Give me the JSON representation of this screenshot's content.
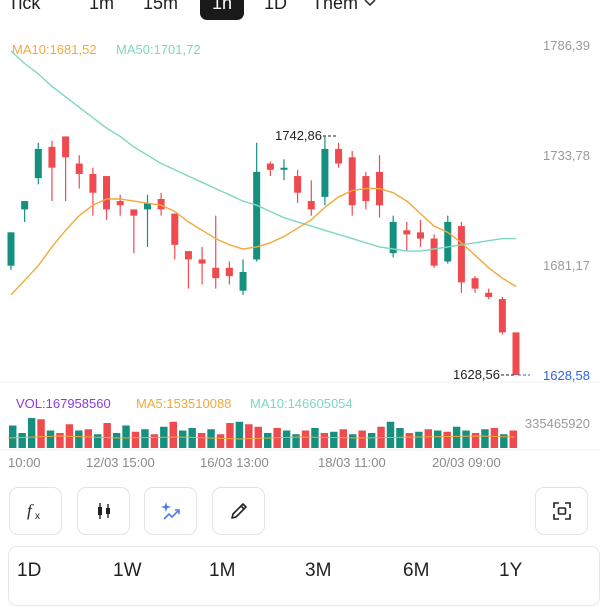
{
  "timeframes": {
    "items": [
      "Tick",
      "1m",
      "15m",
      "1h",
      "1D"
    ],
    "active": "1h",
    "more_label": "Thêm"
  },
  "indicators": {
    "ma10_label": "MA10:1681,52",
    "ma50_label": "MA50:1701,72",
    "vol_label": "VOL:167958560",
    "vol_ma5_label": "MA5:153510088",
    "vol_ma10_label": "MA10:146605054"
  },
  "colors": {
    "up": "#15907f",
    "down": "#ef4a4f",
    "ma10": "#f2a93b",
    "ma50": "#7fd6c3",
    "vol_label": "#8a3ae0",
    "price_tag": "#2f62e8"
  },
  "price_axis": {
    "ticks": [
      "1786,39",
      "1733,78",
      "1681,17"
    ],
    "current": "1628,58"
  },
  "annotations": {
    "high_label": "1742,86",
    "low_label": "1628,56"
  },
  "volume_axis_label": "335465920",
  "time_axis": {
    "ticks": [
      "10:00",
      "12/03 15:00",
      "16/03 13:00",
      "18/03 11:00",
      "20/03 09:00"
    ]
  },
  "toolbar": {
    "items": [
      "fx-icon",
      "candlestick-icon",
      "ai-sparkle-chart-icon",
      "pencil-icon",
      "fullscreen-icon"
    ]
  },
  "range_tabs": [
    "1D",
    "1W",
    "1M",
    "3M",
    "6M",
    "1Y"
  ],
  "chart_data": {
    "type": "candlestick",
    "y_range": [
      1628.56,
      1786.39
    ],
    "candles": [
      {
        "o": 1681,
        "h": 1697,
        "l": 1679,
        "c": 1697
      },
      {
        "o": 1708,
        "h": 1712,
        "l": 1702,
        "c": 1712
      },
      {
        "o": 1723,
        "h": 1740,
        "l": 1720,
        "c": 1737
      },
      {
        "o": 1738,
        "h": 1741,
        "l": 1712,
        "c": 1728
      },
      {
        "o": 1743,
        "h": 1743,
        "l": 1712,
        "c": 1733
      },
      {
        "o": 1730,
        "h": 1734,
        "l": 1718,
        "c": 1725
      },
      {
        "o": 1725,
        "h": 1728,
        "l": 1705,
        "c": 1716
      },
      {
        "o": 1724,
        "h": 1724,
        "l": 1703,
        "c": 1708
      },
      {
        "o": 1712,
        "h": 1715,
        "l": 1705,
        "c": 1710
      },
      {
        "o": 1708,
        "h": 1708,
        "l": 1687,
        "c": 1705
      },
      {
        "o": 1708,
        "h": 1715,
        "l": 1690,
        "c": 1711
      },
      {
        "o": 1713,
        "h": 1716,
        "l": 1705,
        "c": 1708
      },
      {
        "o": 1706,
        "h": 1706,
        "l": 1684,
        "c": 1691
      },
      {
        "o": 1688,
        "h": 1688,
        "l": 1670,
        "c": 1684
      },
      {
        "o": 1684,
        "h": 1690,
        "l": 1672,
        "c": 1682
      },
      {
        "o": 1680,
        "h": 1705,
        "l": 1670,
        "c": 1675
      },
      {
        "o": 1680,
        "h": 1683,
        "l": 1672,
        "c": 1676
      },
      {
        "o": 1669,
        "h": 1684,
        "l": 1667,
        "c": 1678
      },
      {
        "o": 1684,
        "h": 1740,
        "l": 1683,
        "c": 1726
      },
      {
        "o": 1730,
        "h": 1731,
        "l": 1724,
        "c": 1727
      },
      {
        "o": 1727,
        "h": 1732,
        "l": 1722,
        "c": 1728
      },
      {
        "o": 1724,
        "h": 1727,
        "l": 1711,
        "c": 1716
      },
      {
        "o": 1712,
        "h": 1722,
        "l": 1705,
        "c": 1708
      },
      {
        "o": 1714,
        "h": 1742.86,
        "l": 1710,
        "c": 1737
      },
      {
        "o": 1737,
        "h": 1740,
        "l": 1728,
        "c": 1730
      },
      {
        "o": 1733,
        "h": 1736,
        "l": 1705,
        "c": 1710
      },
      {
        "o": 1724,
        "h": 1726,
        "l": 1708,
        "c": 1712
      },
      {
        "o": 1726,
        "h": 1734,
        "l": 1704,
        "c": 1710
      },
      {
        "o": 1687,
        "h": 1705,
        "l": 1685,
        "c": 1702
      },
      {
        "o": 1698,
        "h": 1702,
        "l": 1688,
        "c": 1696
      },
      {
        "o": 1697,
        "h": 1703,
        "l": 1690,
        "c": 1694
      },
      {
        "o": 1694,
        "h": 1696,
        "l": 1680,
        "c": 1681
      },
      {
        "o": 1683,
        "h": 1705,
        "l": 1682,
        "c": 1702
      },
      {
        "o": 1700,
        "h": 1702,
        "l": 1668,
        "c": 1673
      },
      {
        "o": 1675,
        "h": 1676,
        "l": 1668,
        "c": 1670
      },
      {
        "o": 1668,
        "h": 1670,
        "l": 1665,
        "c": 1666
      },
      {
        "o": 1665,
        "h": 1666,
        "l": 1648,
        "c": 1649
      },
      {
        "o": 1649,
        "h": 1649,
        "l": 1628.56,
        "c": 1628.58
      }
    ],
    "ma10": [
      1667,
      1674,
      1681,
      1690,
      1698,
      1705,
      1710,
      1713,
      1713,
      1712,
      1711,
      1710,
      1707,
      1702,
      1698,
      1694,
      1691,
      1689,
      1690,
      1692,
      1695,
      1699,
      1703,
      1709,
      1714,
      1717,
      1718,
      1718,
      1716,
      1712,
      1706,
      1700,
      1697,
      1692,
      1686,
      1680,
      1675,
      1671
    ],
    "ma50": [
      1784,
      1778,
      1773,
      1767,
      1762,
      1757,
      1752,
      1747,
      1743,
      1738,
      1734,
      1730,
      1727,
      1724,
      1721,
      1718,
      1715,
      1712,
      1710,
      1707,
      1704,
      1702,
      1700,
      1698,
      1696,
      1694,
      1692,
      1690,
      1689,
      1688,
      1688,
      1689,
      1690,
      1691,
      1692,
      1693,
      1694,
      1694
    ],
    "volume": {
      "y_max": 335465920,
      "values": [
        180,
        120,
        240,
        230,
        140,
        120,
        190,
        140,
        150,
        110,
        200,
        120,
        180,
        130,
        150,
        110,
        170,
        210,
        140,
        160,
        120,
        150,
        110,
        200,
        210,
        190,
        170,
        120,
        160,
        140,
        110,
        140,
        160,
        120,
        130,
        150,
        110,
        140,
        120,
        170,
        210,
        160,
        120,
        130,
        150,
        140,
        130,
        170,
        140,
        120,
        150,
        160,
        110,
        140
      ],
      "colors": [
        "up",
        "up",
        "up",
        "down",
        "up",
        "down",
        "down",
        "up",
        "down",
        "up",
        "down",
        "up",
        "up",
        "down",
        "up",
        "down",
        "up",
        "down",
        "up",
        "up",
        "down",
        "up",
        "down",
        "down",
        "up",
        "down",
        "down",
        "up",
        "down",
        "up",
        "up",
        "down",
        "up",
        "down",
        "up",
        "down",
        "up",
        "down",
        "up",
        "down",
        "up",
        "up",
        "down",
        "up",
        "down",
        "up",
        "down",
        "up",
        "up",
        "down",
        "up",
        "down",
        "up",
        "down"
      ]
    }
  }
}
